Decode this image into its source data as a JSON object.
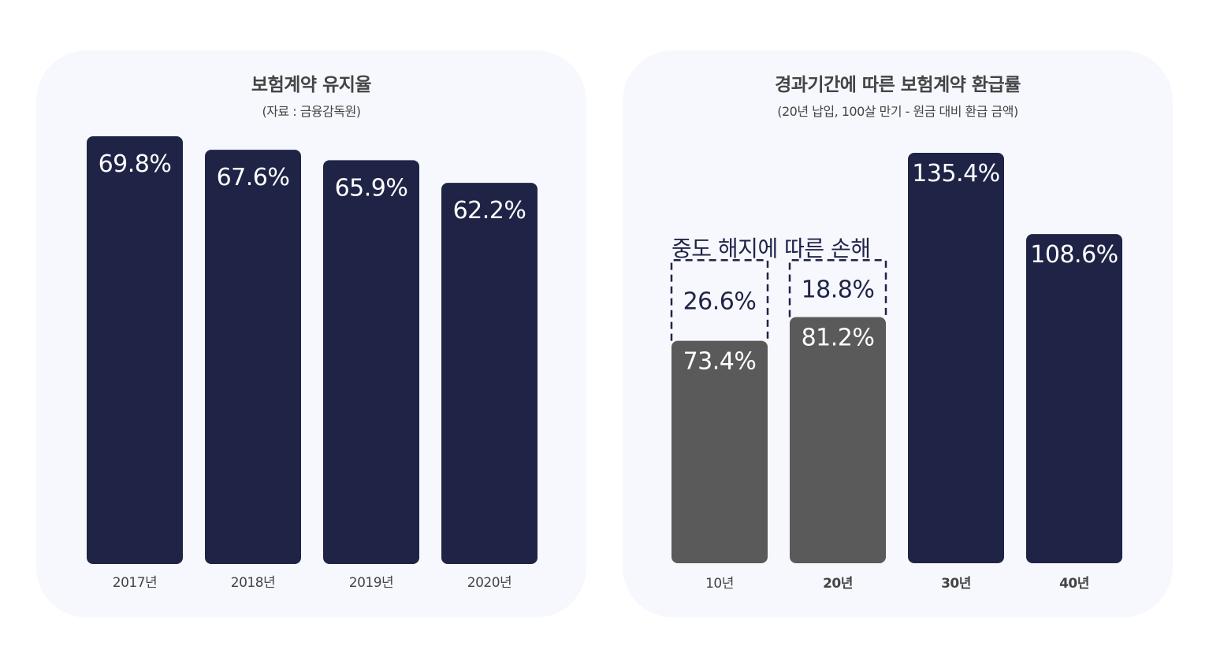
{
  "colors": {
    "panel_bg": "#f7f8fe",
    "bar_navy": "#1f2447",
    "bar_gray": "#5a5a5a",
    "text_dark": "#444444"
  },
  "chart_data": [
    {
      "type": "bar",
      "title": "보험계약 유지율",
      "subtitle": "(자료 : 금융감독원)",
      "categories": [
        "2017년",
        "2018년",
        "2019년",
        "2020년"
      ],
      "values": [
        69.8,
        67.6,
        65.9,
        62.2
      ],
      "value_labels": [
        "69.8%",
        "67.6%",
        "65.9%",
        "62.2%"
      ],
      "ylim": [
        0,
        70
      ],
      "grid": false,
      "bar_color": "#1f2447"
    },
    {
      "type": "bar",
      "title": "경과기간에 따른 보험계약 환급률",
      "subtitle": "(20년 납입, 100살 만기 - 원금 대비 환급 금액)",
      "categories": [
        "10년",
        "20년",
        "30년",
        "40년"
      ],
      "values": [
        73.4,
        81.2,
        135.4,
        108.6
      ],
      "value_labels": [
        "73.4%",
        "81.2%",
        "135.4%",
        "108.6%"
      ],
      "loss_values": [
        26.6,
        18.8,
        null,
        null
      ],
      "loss_labels": [
        "26.6%",
        "18.8%",
        "",
        ""
      ],
      "bar_colors": [
        "#5a5a5a",
        "#5a5a5a",
        "#1f2447",
        "#1f2447"
      ],
      "annotation": "중도 해지에 따른 손해",
      "ylim": [
        0,
        140
      ],
      "grid": false
    }
  ]
}
